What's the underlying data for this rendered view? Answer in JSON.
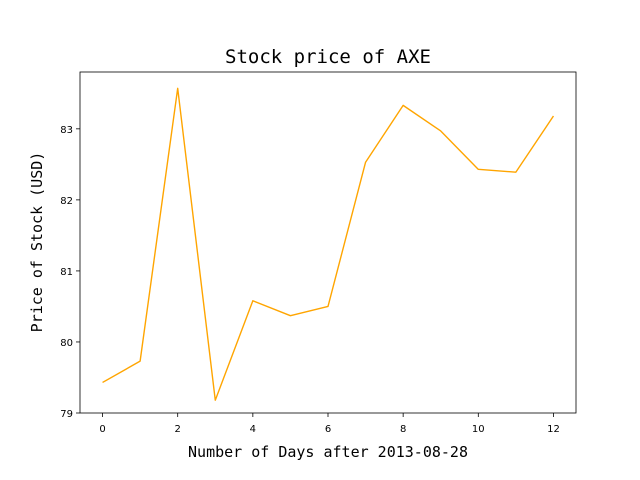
{
  "chart_data": {
    "type": "line",
    "title": "Stock price of AXE",
    "xlabel": "Number of Days after 2013-08-28",
    "ylabel": "Price of Stock (USD)",
    "x": [
      0,
      1,
      2,
      3,
      4,
      5,
      6,
      7,
      8,
      9,
      10,
      11,
      12
    ],
    "series": [
      {
        "values": [
          79.43,
          79.73,
          83.57,
          79.18,
          80.58,
          80.37,
          80.5,
          82.53,
          83.33,
          82.97,
          82.43,
          82.39,
          83.18
        ],
        "color": "#ffa500"
      }
    ],
    "xlim": [
      -0.6,
      12.6
    ],
    "ylim": [
      79.0,
      83.8
    ],
    "xticks": [
      "0",
      "2",
      "4",
      "6",
      "8",
      "10",
      "12"
    ],
    "yticks": [
      "79",
      "80",
      "81",
      "82",
      "83"
    ],
    "grid": false,
    "legend": "none"
  }
}
